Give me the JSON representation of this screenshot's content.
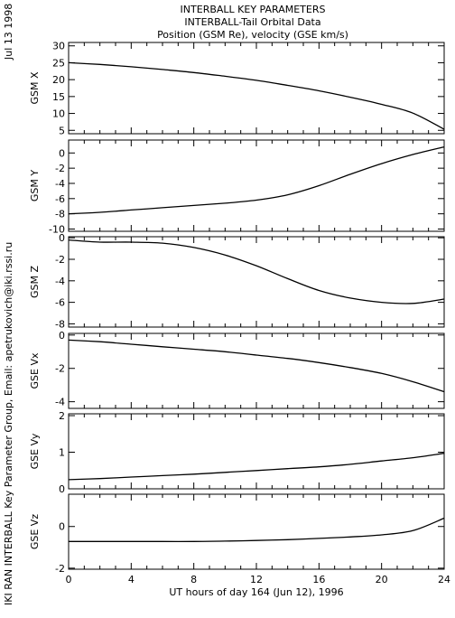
{
  "header": {
    "date": "Jul 13 1998",
    "title_lines": [
      "INTERBALL KEY PARAMETERS",
      "INTERBALL-Tail Orbital Data",
      "Position (GSM Re), velocity (GSE km/s)"
    ],
    "credit": "IKI RAN INTERBALL Key Parameter Group, Email: apetrukovich@iki.rssi.ru"
  },
  "chart_data": {
    "type": "line",
    "title": "INTERBALL KEY PARAMETERS",
    "subtitle": "INTERBALL-Tail Orbital Data",
    "xlabel": "UT hours of day 164 (Jun 12), 1996",
    "xlim": [
      0,
      24
    ],
    "x_ticks": [
      0,
      4,
      8,
      12,
      16,
      20,
      24
    ],
    "panels": [
      {
        "ylabel": "GSM X",
        "ylim": [
          4,
          31
        ],
        "y_ticks": [
          5,
          10,
          15,
          20,
          25,
          30
        ],
        "x": [
          0,
          2,
          4,
          6,
          8,
          10,
          12,
          14,
          16,
          18,
          20,
          22,
          24
        ],
        "y": [
          25.0,
          24.5,
          23.8,
          23.0,
          22.1,
          21.0,
          19.8,
          18.3,
          16.7,
          14.8,
          12.7,
          10.1,
          5.3
        ]
      },
      {
        "ylabel": "GSM Y",
        "ylim": [
          -10.3,
          1.7
        ],
        "y_ticks": [
          -10,
          -8,
          -6,
          -4,
          -2,
          0
        ],
        "x": [
          0,
          2,
          4,
          6,
          8,
          10,
          12,
          14,
          16,
          18,
          20,
          22,
          24
        ],
        "y": [
          -8.0,
          -7.8,
          -7.5,
          -7.2,
          -6.9,
          -6.6,
          -6.2,
          -5.5,
          -4.3,
          -2.8,
          -1.4,
          -0.2,
          0.8
        ]
      },
      {
        "ylabel": "GSM Z",
        "ylim": [
          -8.3,
          0.1
        ],
        "y_ticks": [
          -8,
          -6,
          -4,
          -2,
          0
        ],
        "x": [
          0,
          2,
          4,
          6,
          8,
          10,
          12,
          14,
          16,
          18,
          20,
          22,
          24
        ],
        "y": [
          -0.2,
          -0.4,
          -0.4,
          -0.5,
          -0.9,
          -1.6,
          -2.6,
          -3.8,
          -4.9,
          -5.6,
          -6.0,
          -6.1,
          -5.7
        ]
      },
      {
        "ylabel": "GSE Vx",
        "ylim": [
          -4.4,
          0.1
        ],
        "y_ticks": [
          -4,
          -2,
          0
        ],
        "x": [
          0,
          2,
          4,
          6,
          8,
          10,
          12,
          14,
          16,
          18,
          20,
          22,
          24
        ],
        "y": [
          -0.3,
          -0.4,
          -0.55,
          -0.7,
          -0.85,
          -1.0,
          -1.2,
          -1.4,
          -1.65,
          -1.95,
          -2.3,
          -2.8,
          -3.4
        ]
      },
      {
        "ylabel": "GSE Vy",
        "ylim": [
          0,
          2.05
        ],
        "y_ticks": [
          0,
          1,
          2
        ],
        "x": [
          0,
          2,
          4,
          6,
          8,
          10,
          12,
          14,
          16,
          18,
          20,
          22,
          24
        ],
        "y": [
          0.25,
          0.28,
          0.32,
          0.36,
          0.4,
          0.45,
          0.5,
          0.55,
          0.6,
          0.67,
          0.76,
          0.85,
          0.97
        ]
      },
      {
        "ylabel": "GSE Vz",
        "ylim": [
          -2.05,
          1.55
        ],
        "y_ticks": [
          -2,
          0
        ],
        "x": [
          0,
          2,
          4,
          6,
          8,
          10,
          12,
          14,
          16,
          18,
          20,
          22,
          24
        ],
        "y": [
          -0.72,
          -0.72,
          -0.72,
          -0.72,
          -0.72,
          -0.7,
          -0.67,
          -0.63,
          -0.57,
          -0.5,
          -0.4,
          -0.2,
          0.4
        ]
      }
    ]
  }
}
